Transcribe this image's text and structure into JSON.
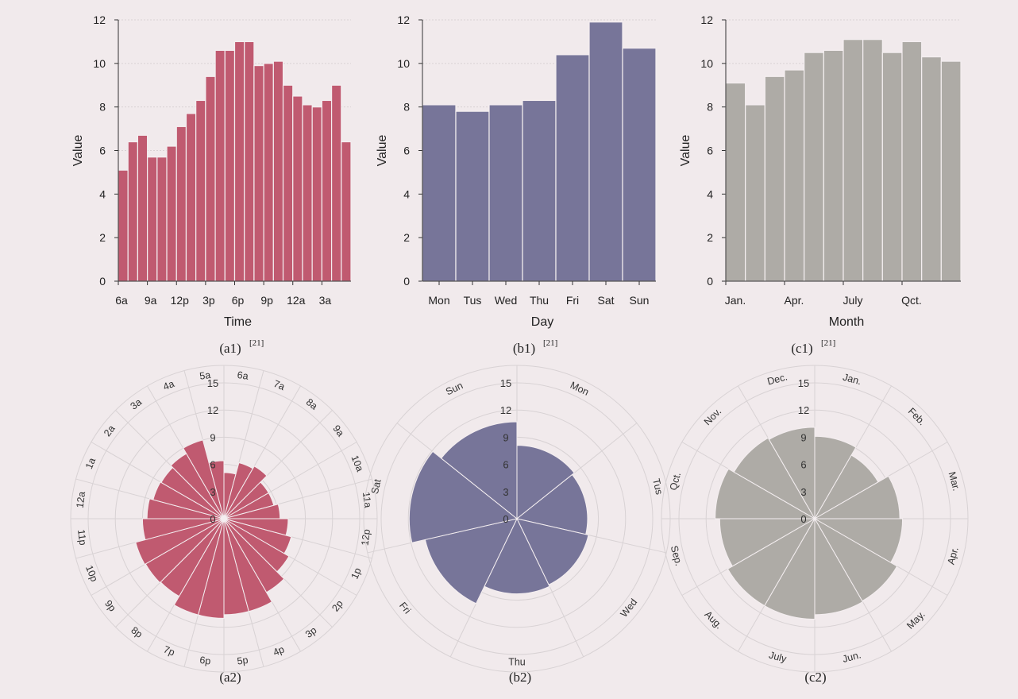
{
  "chart_data": [
    {
      "id": "a1",
      "type": "bar",
      "caption": "(a1)",
      "ref": "[21]",
      "color": "#c05a70",
      "xlabel": "Time",
      "ylabel": "Value",
      "ylim": [
        0,
        12
      ],
      "yticks": [
        0,
        2,
        4,
        6,
        8,
        10,
        12
      ],
      "categories": [
        "6a",
        "7a",
        "8a",
        "9a",
        "10a",
        "11a",
        "12p",
        "1p",
        "2p",
        "3p",
        "4p",
        "5p",
        "6p",
        "7p",
        "8p",
        "9p",
        "10p",
        "11p",
        "12a",
        "1a",
        "2a",
        "3a",
        "4a",
        "5a"
      ],
      "xtick_labels": [
        "6a",
        "9a",
        "12p",
        "3p",
        "6p",
        "9p",
        "12a",
        "3a"
      ],
      "values": [
        5.1,
        6.4,
        6.7,
        5.7,
        5.7,
        6.2,
        7.1,
        7.7,
        8.3,
        9.4,
        10.6,
        10.6,
        11.0,
        11.0,
        9.9,
        10.0,
        10.1,
        9.0,
        8.5,
        8.1,
        8.0,
        8.3,
        9.0,
        6.4
      ],
      "grid": true
    },
    {
      "id": "b1",
      "type": "bar",
      "caption": "(b1)",
      "ref": "[21]",
      "color": "#777599",
      "xlabel": "Day",
      "ylabel": "Value",
      "ylim": [
        0,
        12
      ],
      "yticks": [
        0,
        2,
        4,
        6,
        8,
        10,
        12
      ],
      "categories": [
        "Mon",
        "Tus",
        "Wed",
        "Thu",
        "Fri",
        "Sat",
        "Sun"
      ],
      "xtick_labels": [
        "Mon",
        "Tus",
        "Wed",
        "Thu",
        "Fri",
        "Sat",
        "Sun"
      ],
      "values": [
        8.1,
        7.8,
        8.1,
        8.3,
        10.4,
        11.9,
        10.7
      ],
      "grid": true
    },
    {
      "id": "c1",
      "type": "bar",
      "caption": "(c1)",
      "ref": "[21]",
      "color": "#aeaba6",
      "xlabel": "Month",
      "ylabel": "Value",
      "ylim": [
        0,
        12
      ],
      "yticks": [
        0,
        2,
        4,
        6,
        8,
        10,
        12
      ],
      "categories": [
        "Jan.",
        "Feb.",
        "Mar.",
        "Apr.",
        "May.",
        "Jun.",
        "July",
        "Aug.",
        "Sep.",
        "Qct.",
        "Nov.",
        "Dec."
      ],
      "xtick_labels": [
        "Jan.",
        "Apr.",
        "July",
        "Qct."
      ],
      "values": [
        9.1,
        8.1,
        9.4,
        9.7,
        10.5,
        10.6,
        11.1,
        11.1,
        10.5,
        11.0,
        10.3,
        10.1
      ],
      "grid": true
    },
    {
      "id": "a2",
      "type": "polar-bar",
      "caption": "(a2)",
      "color": "#c05a70",
      "rlim": [
        0,
        15
      ],
      "rticks": [
        0,
        3,
        6,
        9,
        12,
        15
      ],
      "categories": [
        "6a",
        "7a",
        "8a",
        "9a",
        "10a",
        "11a",
        "12p",
        "1p",
        "2p",
        "3p",
        "4p",
        "5p",
        "6p",
        "7p",
        "8p",
        "9p",
        "10p",
        "11p",
        "12a",
        "1a",
        "2a",
        "3a",
        "4a",
        "5a"
      ],
      "values": [
        5.1,
        6.4,
        6.7,
        5.7,
        5.7,
        6.2,
        7.1,
        7.7,
        8.3,
        9.4,
        10.6,
        10.6,
        11.0,
        11.0,
        9.9,
        10.0,
        10.1,
        9.0,
        8.5,
        8.1,
        8.0,
        8.3,
        9.0,
        6.4
      ]
    },
    {
      "id": "b2",
      "type": "polar-bar",
      "caption": "(b2)",
      "color": "#777599",
      "rlim": [
        0,
        15
      ],
      "rticks": [
        0,
        3,
        6,
        9,
        12,
        15
      ],
      "categories": [
        "Mon",
        "Tus",
        "Wed",
        "Thu",
        "Fri",
        "Sat",
        "Sun"
      ],
      "values": [
        8.1,
        7.8,
        8.1,
        8.3,
        10.4,
        11.9,
        10.7
      ]
    },
    {
      "id": "c2",
      "type": "polar-bar",
      "caption": "(c2)",
      "color": "#aeaba6",
      "rlim": [
        0,
        15
      ],
      "rticks": [
        0,
        3,
        6,
        9,
        12,
        15
      ],
      "categories": [
        "Jan.",
        "Feb.",
        "Mar.",
        "Apr.",
        "May.",
        "Jun.",
        "July",
        "Aug.",
        "Sep.",
        "Qct.",
        "Nov.",
        "Dec."
      ],
      "values": [
        9.1,
        8.1,
        9.4,
        9.7,
        10.5,
        10.6,
        11.1,
        11.1,
        10.5,
        11.0,
        10.3,
        10.1
      ]
    }
  ]
}
